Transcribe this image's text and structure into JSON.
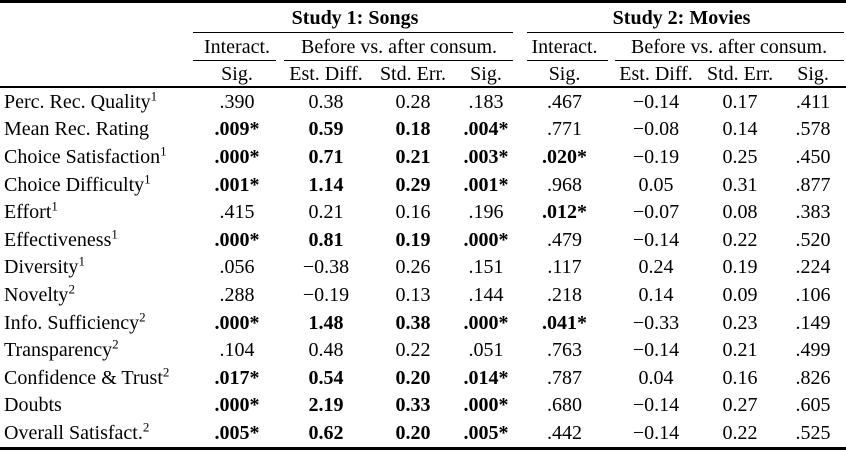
{
  "table": {
    "studies": [
      {
        "title": "Study 1: Songs",
        "interact_label": "Interact.",
        "before_after_label": "Before vs. after consum.",
        "columns": [
          "Sig.",
          "Est. Diff.",
          "Std. Err.",
          "Sig."
        ]
      },
      {
        "title": "Study 2: Movies",
        "interact_label": "Interact.",
        "before_after_label": "Before vs. after consum.",
        "columns": [
          "Sig.",
          "Est. Diff.",
          "Std. Err.",
          "Sig."
        ]
      }
    ],
    "rows": [
      {
        "label": "Perc. Rec. Quality",
        "sup": "1",
        "s1": [
          ".390",
          "0.38",
          "0.28",
          ".183"
        ],
        "s1_bold": false,
        "s2": [
          ".467",
          "−0.14",
          "0.17",
          ".411"
        ],
        "s2_sig_bold": false
      },
      {
        "label": "Mean Rec. Rating",
        "sup": "",
        "s1": [
          ".009*",
          "0.59",
          "0.18",
          ".004*"
        ],
        "s1_bold": true,
        "s2": [
          ".771",
          "−0.08",
          "0.14",
          ".578"
        ],
        "s2_sig_bold": false
      },
      {
        "label": "Choice Satisfaction",
        "sup": "1",
        "s1": [
          ".000*",
          "0.71",
          "0.21",
          ".003*"
        ],
        "s1_bold": true,
        "s2": [
          ".020*",
          "−0.19",
          "0.25",
          ".450"
        ],
        "s2_sig_bold": true
      },
      {
        "label": "Choice Difficulty",
        "sup": "1",
        "s1": [
          ".001*",
          "1.14",
          "0.29",
          ".001*"
        ],
        "s1_bold": true,
        "s2": [
          ".968",
          "0.05",
          "0.31",
          ".877"
        ],
        "s2_sig_bold": false
      },
      {
        "label": "Effort",
        "sup": "1",
        "s1": [
          ".415",
          "0.21",
          "0.16",
          ".196"
        ],
        "s1_bold": false,
        "s2": [
          ".012*",
          "−0.07",
          "0.08",
          ".383"
        ],
        "s2_sig_bold": true
      },
      {
        "label": "Effectiveness",
        "sup": "1",
        "s1": [
          ".000*",
          "0.81",
          "0.19",
          ".000*"
        ],
        "s1_bold": true,
        "s2": [
          ".479",
          "−0.14",
          "0.22",
          ".520"
        ],
        "s2_sig_bold": false
      },
      {
        "label": "Diversity",
        "sup": "1",
        "s1": [
          ".056",
          "−0.38",
          "0.26",
          ".151"
        ],
        "s1_bold": false,
        "s2": [
          ".117",
          "0.24",
          "0.19",
          ".224"
        ],
        "s2_sig_bold": false
      },
      {
        "label": "Novelty",
        "sup": "2",
        "s1": [
          ".288",
          "−0.19",
          "0.13",
          ".144"
        ],
        "s1_bold": false,
        "s2": [
          ".218",
          "0.14",
          "0.09",
          ".106"
        ],
        "s2_sig_bold": false
      },
      {
        "label": "Info. Sufficiency",
        "sup": "2",
        "s1": [
          ".000*",
          "1.48",
          "0.38",
          ".000*"
        ],
        "s1_bold": true,
        "s2": [
          ".041*",
          "−0.33",
          "0.23",
          ".149"
        ],
        "s2_sig_bold": true
      },
      {
        "label": "Transparency",
        "sup": "2",
        "s1": [
          ".104",
          "0.48",
          "0.22",
          ".051"
        ],
        "s1_bold": false,
        "s2": [
          ".763",
          "−0.14",
          "0.21",
          ".499"
        ],
        "s2_sig_bold": false
      },
      {
        "label": "Confidence & Trust",
        "sup": "2",
        "s1": [
          ".017*",
          "0.54",
          "0.20",
          ".014*"
        ],
        "s1_bold": true,
        "s2": [
          ".787",
          "0.04",
          "0.16",
          ".826"
        ],
        "s2_sig_bold": false
      },
      {
        "label": "Doubts",
        "sup": "",
        "s1": [
          ".000*",
          "2.19",
          "0.33",
          ".000*"
        ],
        "s1_bold": true,
        "s2": [
          ".680",
          "−0.14",
          "0.27",
          ".605"
        ],
        "s2_sig_bold": false
      },
      {
        "label": "Overall Satisfact.",
        "sup": "2",
        "s1": [
          ".005*",
          "0.62",
          "0.20",
          ".005*"
        ],
        "s1_bold": true,
        "s2": [
          ".442",
          "−0.14",
          "0.22",
          ".525"
        ],
        "s2_sig_bold": false
      }
    ]
  },
  "colors": {
    "text": "#000000",
    "background": "#ffffff",
    "rule": "#000000"
  }
}
